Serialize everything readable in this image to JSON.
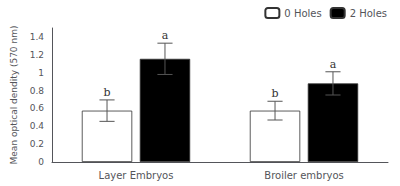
{
  "chart_data": {
    "type": "bar",
    "categories": [
      "Layer Embryos",
      "Broiler embryos"
    ],
    "series": [
      {
        "name": "0 Holes",
        "color": "white",
        "values": [
          0.575,
          0.575
        ],
        "errors": [
          0.12,
          0.105
        ],
        "annotations": [
          "b",
          "b"
        ]
      },
      {
        "name": "2 Holes",
        "color": "black",
        "values": [
          1.155,
          0.88
        ],
        "errors": [
          0.175,
          0.13
        ],
        "annotations": [
          "a",
          "a"
        ]
      }
    ],
    "ylabel": "Mean optical dendity (570 nm)",
    "ylim": [
      0,
      1.5
    ],
    "yticks": [
      0,
      0.2,
      0.4,
      0.6,
      0.8,
      1,
      1.2,
      1.4
    ],
    "grid": false,
    "legend": "upper right"
  }
}
